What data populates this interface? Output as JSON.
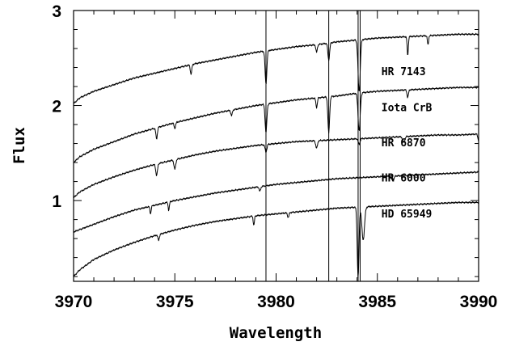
{
  "chart_data": {
    "type": "line",
    "xlabel": "Wavelength",
    "ylabel": "Flux",
    "xlim": [
      3970,
      3990
    ],
    "ylim": [
      0.15,
      3.0
    ],
    "x_ticks": [
      3970,
      3975,
      3980,
      3985,
      3990
    ],
    "x_tick_labels": [
      "3970",
      "3975",
      "3980",
      "3985",
      "3990"
    ],
    "y_ticks": [
      1,
      2,
      3
    ],
    "y_tick_labels": [
      "1",
      "2",
      "3"
    ],
    "reference_lines_x": [
      3979.5,
      3982.6,
      3984.05,
      3984.15
    ],
    "label_x": 3985.2,
    "series": [
      {
        "name": "HR 7143",
        "label_y": 2.32,
        "points": [
          [
            3970,
            2.02
          ],
          [
            3970.3,
            2.08
          ],
          [
            3971,
            2.15
          ],
          [
            3972,
            2.22
          ],
          [
            3973,
            2.29
          ],
          [
            3974,
            2.34
          ],
          [
            3975,
            2.39
          ],
          [
            3976,
            2.44
          ],
          [
            3977,
            2.48
          ],
          [
            3978,
            2.52
          ],
          [
            3979,
            2.56
          ],
          [
            3980,
            2.59
          ],
          [
            3981,
            2.62
          ],
          [
            3982,
            2.64
          ],
          [
            3983,
            2.67
          ],
          [
            3984,
            2.69
          ],
          [
            3985,
            2.71
          ],
          [
            3986,
            2.72
          ],
          [
            3987,
            2.73
          ],
          [
            3988,
            2.74
          ],
          [
            3989,
            2.75
          ],
          [
            3990,
            2.75
          ]
        ],
        "lines": [
          [
            3975.8,
            0.1,
            0.1
          ],
          [
            3979.5,
            0.35,
            0.12
          ],
          [
            3982,
            0.08,
            0.1
          ],
          [
            3982.6,
            0.18,
            0.12
          ],
          [
            3984.1,
            0.55,
            0.15
          ],
          [
            3986.5,
            0.2,
            0.08
          ],
          [
            3987.5,
            0.1,
            0.08
          ]
        ]
      },
      {
        "name": "Iota CrB",
        "label_y": 1.94,
        "points": [
          [
            3970,
            1.4
          ],
          [
            3970.3,
            1.46
          ],
          [
            3971,
            1.54
          ],
          [
            3972,
            1.62
          ],
          [
            3973,
            1.7
          ],
          [
            3974,
            1.76
          ],
          [
            3975,
            1.82
          ],
          [
            3976,
            1.87
          ],
          [
            3977,
            1.92
          ],
          [
            3978,
            1.96
          ],
          [
            3979,
            2
          ],
          [
            3980,
            2.03
          ],
          [
            3981,
            2.06
          ],
          [
            3982,
            2.08
          ],
          [
            3983,
            2.1
          ],
          [
            3984,
            2.13
          ],
          [
            3985,
            2.15
          ],
          [
            3986,
            2.16
          ],
          [
            3987,
            2.17
          ],
          [
            3988,
            2.18
          ],
          [
            3989,
            2.19
          ],
          [
            3990,
            2.19
          ]
        ],
        "lines": [
          [
            3974.1,
            0.12,
            0.1
          ],
          [
            3975,
            0.06,
            0.1
          ],
          [
            3977.8,
            0.06,
            0.1
          ],
          [
            3979.5,
            0.3,
            0.12
          ],
          [
            3982,
            0.1,
            0.1
          ],
          [
            3982.6,
            0.38,
            0.12
          ],
          [
            3984.1,
            0.4,
            0.15
          ],
          [
            3986.5,
            0.08,
            0.1
          ]
        ]
      },
      {
        "name": "HR 6870",
        "label_y": 1.57,
        "points": [
          [
            3970,
            1.03
          ],
          [
            3970.3,
            1.09
          ],
          [
            3971,
            1.17
          ],
          [
            3972,
            1.25
          ],
          [
            3973,
            1.32
          ],
          [
            3974,
            1.38
          ],
          [
            3975,
            1.43
          ],
          [
            3976,
            1.48
          ],
          [
            3977,
            1.52
          ],
          [
            3978,
            1.55
          ],
          [
            3979,
            1.58
          ],
          [
            3980,
            1.6
          ],
          [
            3981,
            1.62
          ],
          [
            3982,
            1.63
          ],
          [
            3983,
            1.64
          ],
          [
            3984,
            1.65
          ],
          [
            3985,
            1.66
          ],
          [
            3986,
            1.67
          ],
          [
            3987,
            1.68
          ],
          [
            3988,
            1.69
          ],
          [
            3989,
            1.69
          ],
          [
            3990,
            1.7
          ]
        ],
        "lines": [
          [
            3974.1,
            0.12,
            0.12
          ],
          [
            3975,
            0.1,
            0.12
          ],
          [
            3979.5,
            0.08,
            0.12
          ],
          [
            3982,
            0.08,
            0.12
          ],
          [
            3984.1,
            0.06,
            0.12
          ],
          [
            3986.3,
            0.06,
            0.15
          ],
          [
            3990,
            0.07,
            0.1
          ]
        ]
      },
      {
        "name": "HR 6000",
        "label_y": 1.2,
        "points": [
          [
            3970,
            0.67
          ],
          [
            3971,
            0.75
          ],
          [
            3972,
            0.83
          ],
          [
            3973,
            0.9
          ],
          [
            3974,
            0.95
          ],
          [
            3975,
            1
          ],
          [
            3976,
            1.04
          ],
          [
            3977,
            1.08
          ],
          [
            3978,
            1.11
          ],
          [
            3979,
            1.14
          ],
          [
            3980,
            1.17
          ],
          [
            3981,
            1.19
          ],
          [
            3982,
            1.21
          ],
          [
            3983,
            1.23
          ],
          [
            3984,
            1.24
          ],
          [
            3985,
            1.25
          ],
          [
            3986,
            1.26
          ],
          [
            3987,
            1.27
          ],
          [
            3988,
            1.28
          ],
          [
            3989,
            1.29
          ],
          [
            3990,
            1.3
          ]
        ],
        "lines": [
          [
            3973.8,
            0.08,
            0.08
          ],
          [
            3974.7,
            0.09,
            0.08
          ],
          [
            3979.2,
            0.05,
            0.1
          ],
          [
            3985.8,
            0.04,
            0.1
          ]
        ]
      },
      {
        "name": "HD 65949",
        "label_y": 0.82,
        "points": [
          [
            3970,
            0.2
          ],
          [
            3970.3,
            0.27
          ],
          [
            3971,
            0.38
          ],
          [
            3972,
            0.48
          ],
          [
            3973,
            0.56
          ],
          [
            3974,
            0.63
          ],
          [
            3975,
            0.69
          ],
          [
            3976,
            0.74
          ],
          [
            3977,
            0.78
          ],
          [
            3978,
            0.81
          ],
          [
            3979,
            0.84
          ],
          [
            3980,
            0.86
          ],
          [
            3981,
            0.88
          ],
          [
            3982,
            0.9
          ],
          [
            3983,
            0.92
          ],
          [
            3984,
            0.93
          ],
          [
            3985,
            0.94
          ],
          [
            3986,
            0.95
          ],
          [
            3987,
            0.96
          ],
          [
            3988,
            0.97
          ],
          [
            3989,
            0.98
          ],
          [
            3990,
            0.98
          ]
        ],
        "lines": [
          [
            3974.2,
            0.06,
            0.1
          ],
          [
            3978.9,
            0.1,
            0.08
          ],
          [
            3980.6,
            0.05,
            0.1
          ],
          [
            3984.05,
            0.75,
            0.12
          ],
          [
            3984.3,
            0.35,
            0.18
          ]
        ]
      }
    ]
  }
}
